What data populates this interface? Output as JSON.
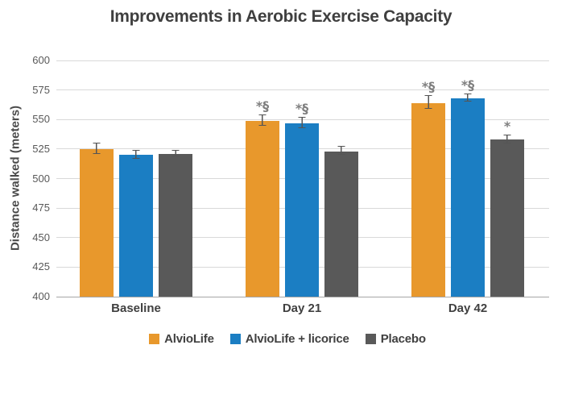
{
  "chart_data": {
    "type": "bar",
    "title": "Improvements in Aerobic Exercise Capacity",
    "ylabel": "Distance walked (meters)",
    "xlabel": "",
    "categories": [
      "Baseline",
      "Day 21",
      "Day 42"
    ],
    "ylim": [
      400,
      600
    ],
    "yticks": [
      400,
      425,
      450,
      475,
      500,
      525,
      550,
      575,
      600
    ],
    "grid": true,
    "legend_position": "bottom-center",
    "series": [
      {
        "name": "AlvioLife",
        "color": "#E8982C",
        "values": [
          525,
          549,
          564
        ],
        "errors": [
          4,
          4,
          5
        ],
        "annotations": [
          "",
          "*§",
          "*§"
        ]
      },
      {
        "name": "AlvioLife + licorice",
        "color": "#1B7EC3",
        "values": [
          520,
          547,
          568
        ],
        "errors": [
          3,
          4,
          3
        ],
        "annotations": [
          "",
          "*§",
          "*§"
        ]
      },
      {
        "name": "Placebo",
        "color": "#595959",
        "values": [
          521,
          523,
          533
        ],
        "errors": [
          2,
          3,
          3
        ],
        "annotations": [
          "",
          "",
          "*"
        ]
      }
    ],
    "colors": {
      "grid": "#D9D9D9",
      "axis": "#A6A6A6",
      "tick_text": "#595959",
      "title_text": "#3F3F3F",
      "category_text": "#404040",
      "legend_text": "#404040",
      "annotation": "#7F7F7F",
      "error_bar": "#555555",
      "background": "#FFFFFF"
    }
  }
}
